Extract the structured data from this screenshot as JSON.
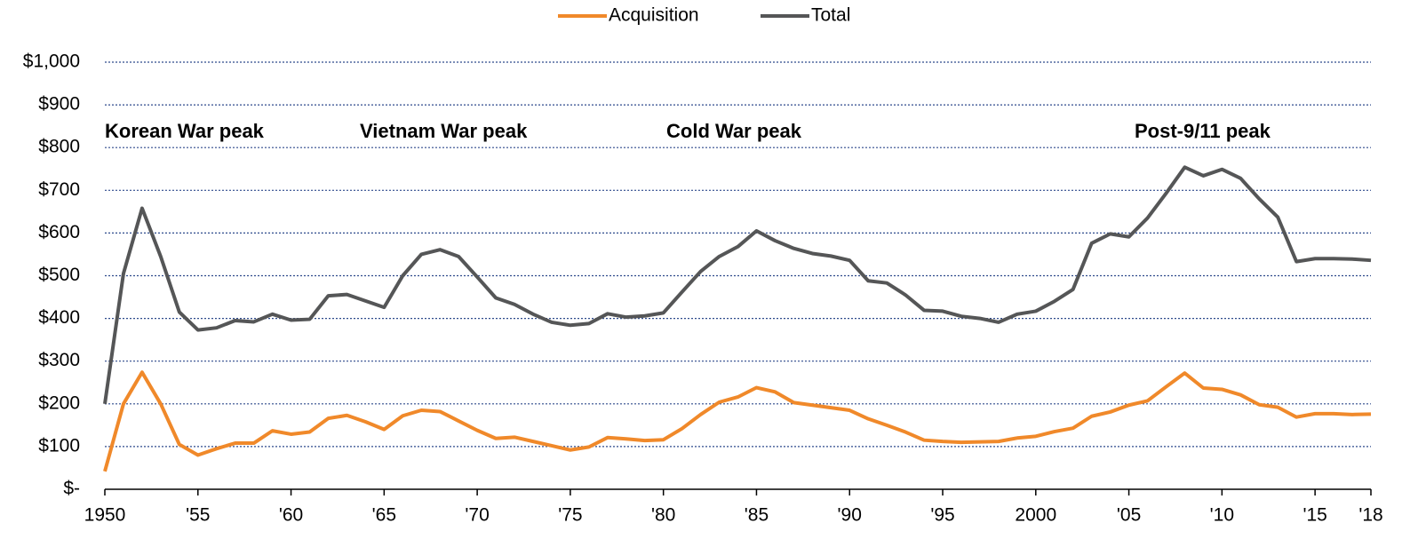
{
  "chart_data": {
    "type": "line",
    "annotations": [
      "Korean War peak",
      "Vietnam War peak",
      "Cold War peak",
      "Post-9/11 peak"
    ],
    "x": [
      1950,
      1951,
      1952,
      1953,
      1954,
      1955,
      1956,
      1957,
      1958,
      1959,
      1960,
      1961,
      1962,
      1963,
      1964,
      1965,
      1966,
      1967,
      1968,
      1969,
      1970,
      1971,
      1972,
      1973,
      1974,
      1975,
      1976,
      1977,
      1978,
      1979,
      1980,
      1981,
      1982,
      1983,
      1984,
      1985,
      1986,
      1987,
      1988,
      1989,
      1990,
      1991,
      1992,
      1993,
      1994,
      1995,
      1996,
      1997,
      1998,
      1999,
      2000,
      2001,
      2002,
      2003,
      2004,
      2005,
      2006,
      2007,
      2008,
      2009,
      2010,
      2011,
      2012,
      2013,
      2014,
      2015,
      2016,
      2017,
      2018
    ],
    "series": [
      {
        "name": "Acquisition",
        "color": "#f0892a",
        "values": [
          42,
          200,
          274,
          200,
          105,
          80,
          95,
          108,
          108,
          137,
          129,
          134,
          166,
          173,
          158,
          140,
          172,
          185,
          182,
          160,
          138,
          119,
          122,
          112,
          102,
          92,
          99,
          121,
          118,
          114,
          116,
          142,
          175,
          204,
          216,
          238,
          228,
          203,
          197,
          191,
          185,
          165,
          150,
          134,
          115,
          112,
          110,
          111,
          112,
          120,
          124,
          135,
          143,
          171,
          181,
          197,
          207,
          240,
          272,
          237,
          234,
          221,
          198,
          192,
          169,
          177,
          177,
          175,
          176
        ]
      },
      {
        "name": "Total",
        "color": "#555657",
        "values": [
          200,
          505,
          658,
          545,
          415,
          373,
          378,
          395,
          392,
          410,
          396,
          398,
          453,
          456,
          441,
          426,
          500,
          550,
          561,
          545,
          497,
          448,
          433,
          410,
          391,
          384,
          388,
          411,
          403,
          406,
          413,
          462,
          510,
          545,
          568,
          605,
          582,
          564,
          552,
          546,
          536,
          488,
          483,
          455,
          419,
          417,
          405,
          400,
          391,
          410,
          417,
          440,
          468,
          576,
          598,
          591,
          635,
          693,
          754,
          734,
          749,
          728,
          680,
          637,
          533,
          540,
          540,
          539,
          536
        ]
      }
    ],
    "xlim": [
      1950,
      2018
    ],
    "xticks": [
      1950,
      {
        "value": 1955,
        "label": "'55"
      },
      {
        "value": 1960,
        "label": "'60"
      },
      {
        "value": 1965,
        "label": "'65"
      },
      {
        "value": 1970,
        "label": "'70"
      },
      {
        "value": 1975,
        "label": "'75"
      },
      {
        "value": 1980,
        "label": "'80"
      },
      {
        "value": 1985,
        "label": "'85"
      },
      {
        "value": 1990,
        "label": "'90"
      },
      {
        "value": 1995,
        "label": "'95"
      },
      2000,
      {
        "value": 2005,
        "label": "'05"
      },
      {
        "value": 2010,
        "label": "'10"
      },
      {
        "value": 2015,
        "label": "'15"
      },
      {
        "value": 2018,
        "label": "'18"
      }
    ],
    "ylim": [
      0,
      1000
    ],
    "yticks": [
      {
        "value": 0,
        "label": "$-"
      },
      {
        "value": 100,
        "label": "$100"
      },
      {
        "value": 200,
        "label": "$200"
      },
      {
        "value": 300,
        "label": "$300"
      },
      {
        "value": 400,
        "label": "$400"
      },
      {
        "value": 500,
        "label": "$500"
      },
      {
        "value": 600,
        "label": "$600"
      },
      {
        "value": 700,
        "label": "$700"
      },
      {
        "value": 800,
        "label": "$800"
      },
      {
        "value": 900,
        "label": "$900"
      },
      {
        "value": 1000,
        "label": "$1,000"
      }
    ],
    "grid": true,
    "legend": "top"
  }
}
